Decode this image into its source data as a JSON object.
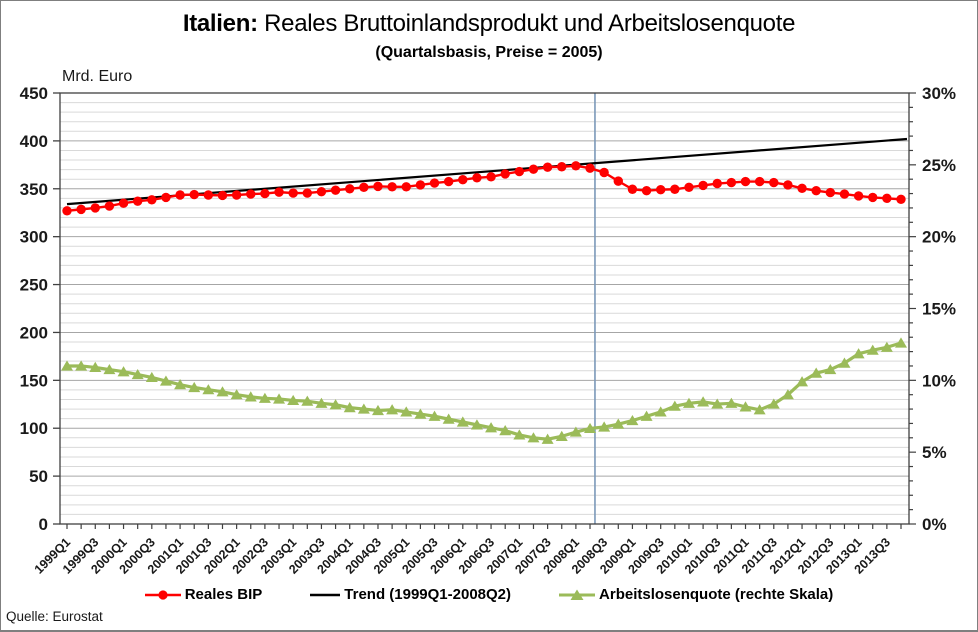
{
  "title": {
    "prefix": "Italien:",
    "rest": " Reales Bruttoinlandsprodukt und Arbeitslosenquote"
  },
  "subtitle": "(Quartalsbasis, Preise = 2005)",
  "source": "Quelle: Eurostat",
  "left_axis_unit": "Mrd. Euro",
  "legend": {
    "bip": "Reales BIP",
    "trend": "Trend (1999Q1-2008Q2)",
    "alq": "Arbeitslosenquote (rechte Skala)"
  },
  "colors": {
    "bip": "#fe0000",
    "trend": "#000000",
    "alq": "#9bbb59",
    "event_line": "#7b98b8",
    "grid_minor": "#d9d9d9",
    "grid_major": "#a6a6a6",
    "axis": "#404040",
    "tick_text": "#1a1a1a"
  },
  "chart_data": {
    "type": "line",
    "title": "Italien: Reales Bruttoinlandsprodukt und Arbeitslosenquote",
    "subtitle": "(Quartalsbasis, Preise = 2005)",
    "grid": true,
    "legend_position": "bottom",
    "x_tick_every": 2,
    "left_axis": {
      "label": "Mrd. Euro",
      "min": 0,
      "max": 450,
      "major_step": 50,
      "minor_step": 10
    },
    "right_axis": {
      "label": "%",
      "min": 0,
      "max": 30,
      "major_step": 5,
      "minor_step": 1
    },
    "quarters": [
      "1999Q1",
      "1999Q2",
      "1999Q3",
      "1999Q4",
      "2000Q1",
      "2000Q2",
      "2000Q3",
      "2000Q4",
      "2001Q1",
      "2001Q2",
      "2001Q3",
      "2001Q4",
      "2002Q1",
      "2002Q2",
      "2002Q3",
      "2002Q4",
      "2003Q1",
      "2003Q2",
      "2003Q3",
      "2003Q4",
      "2004Q1",
      "2004Q2",
      "2004Q3",
      "2004Q4",
      "2005Q1",
      "2005Q2",
      "2005Q3",
      "2005Q4",
      "2006Q1",
      "2006Q2",
      "2006Q3",
      "2006Q4",
      "2007Q1",
      "2007Q2",
      "2007Q3",
      "2007Q4",
      "2008Q1",
      "2008Q2",
      "2008Q3",
      "2008Q4",
      "2009Q1",
      "2009Q2",
      "2009Q3",
      "2009Q4",
      "2010Q1",
      "2010Q2",
      "2010Q3",
      "2010Q4",
      "2011Q1",
      "2011Q2",
      "2011Q3",
      "2011Q4",
      "2012Q1",
      "2012Q2",
      "2012Q3",
      "2012Q4",
      "2013Q1",
      "2013Q2",
      "2013Q3",
      "2013Q4"
    ],
    "series": [
      {
        "name": "Reales BIP",
        "axis": "left",
        "unit": "Mrd. Euro",
        "marker": "circle",
        "color": "#fe0000",
        "values": [
          327,
          328.5,
          330,
          332,
          335,
          337,
          338.5,
          341,
          343.5,
          344,
          343.5,
          343,
          343.5,
          344.5,
          345,
          346.5,
          345.5,
          345.5,
          347,
          348.5,
          350,
          351.5,
          352.5,
          352,
          352,
          354,
          356,
          357.5,
          359.5,
          361.5,
          362.5,
          365.5,
          368,
          370.5,
          372.5,
          373,
          374,
          371.5,
          367,
          358,
          349.5,
          348,
          349,
          349.5,
          351.5,
          353.5,
          355.5,
          356.5,
          357.5,
          357.5,
          356.5,
          354,
          350.5,
          348,
          346,
          344.5,
          342.5,
          341,
          340,
          339
        ]
      },
      {
        "name": "Trend (1999Q1-2008Q2)",
        "axis": "left",
        "unit": "Mrd. Euro",
        "marker": "none",
        "color": "#000000",
        "type": "straight_trend",
        "fit_period": "1999Q1-2008Q2",
        "start_value": 334,
        "end_value": 402
      },
      {
        "name": "Arbeitslosenquote (rechte Skala)",
        "axis": "right",
        "unit": "%",
        "marker": "triangle",
        "color": "#9bbb59",
        "values": [
          11.0,
          11.0,
          10.9,
          10.75,
          10.6,
          10.4,
          10.2,
          9.95,
          9.7,
          9.5,
          9.35,
          9.2,
          9.0,
          8.85,
          8.75,
          8.7,
          8.6,
          8.55,
          8.4,
          8.3,
          8.1,
          8.0,
          7.9,
          7.95,
          7.8,
          7.65,
          7.5,
          7.3,
          7.1,
          6.9,
          6.7,
          6.5,
          6.2,
          6.0,
          5.9,
          6.1,
          6.4,
          6.65,
          6.75,
          6.95,
          7.2,
          7.5,
          7.8,
          8.2,
          8.4,
          8.5,
          8.35,
          8.4,
          8.15,
          7.95,
          8.35,
          9.0,
          9.9,
          10.5,
          10.75,
          11.2,
          11.85,
          12.1,
          12.3,
          12.6
        ]
      }
    ],
    "event_line": {
      "after_quarter": "2008Q2",
      "color": "#7b98b8"
    }
  }
}
